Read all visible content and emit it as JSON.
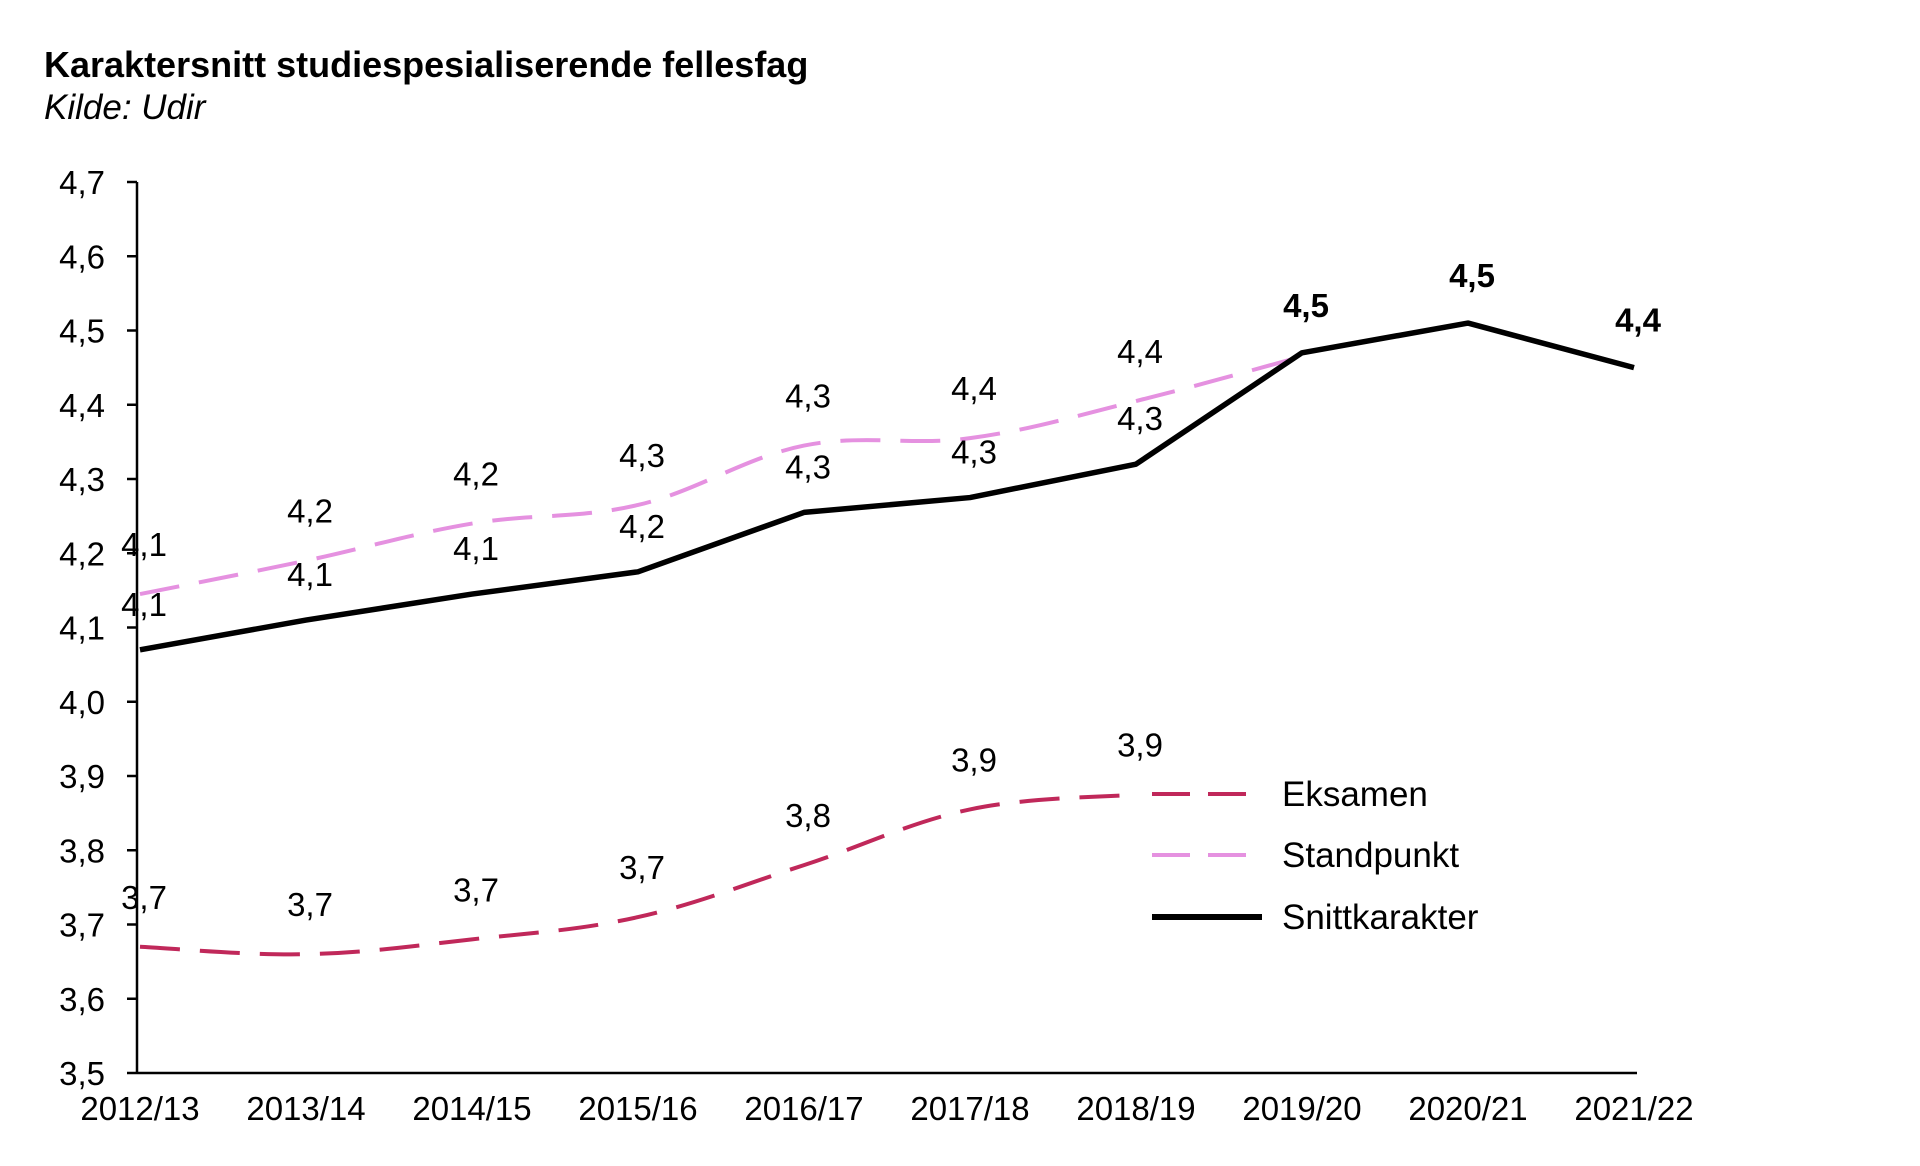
{
  "chart_data": {
    "type": "line",
    "title": "Karaktersnitt studiespesialiserende fellesfag",
    "subtitle": "Kilde: Udir",
    "xlabel": "",
    "ylabel": "",
    "categories": [
      "2012/13",
      "2013/14",
      "2014/15",
      "2015/16",
      "2016/17",
      "2017/18",
      "2018/19",
      "2019/20",
      "2020/21",
      "2021/22"
    ],
    "ylim": [
      3.5,
      4.7
    ],
    "yticks": [
      "3,5",
      "3,6",
      "3,7",
      "3,8",
      "3,9",
      "4,0",
      "4,1",
      "4,2",
      "4,3",
      "4,4",
      "4,5",
      "4,6",
      "4,7"
    ],
    "grid": false,
    "legend_position": "right",
    "series": [
      {
        "name": "Eksamen",
        "color": "#c0285a",
        "style": "dashed",
        "values": [
          3.67,
          3.66,
          3.68,
          3.71,
          3.78,
          3.855,
          3.875,
          null,
          null,
          null
        ],
        "labels": [
          "3,7",
          "3,7",
          "3,7",
          "3,7",
          "3,8",
          "3,9",
          "3,9",
          null,
          null,
          null
        ]
      },
      {
        "name": "Standpunkt",
        "color": "#e591e0",
        "style": "dashed",
        "values": [
          4.145,
          4.19,
          4.24,
          4.265,
          4.345,
          4.355,
          4.405,
          4.465,
          null,
          null
        ],
        "labels": [
          "4,1",
          "4,2",
          "4,2",
          "4,3",
          "4,3",
          "4,4",
          "4,4",
          null,
          null,
          null
        ]
      },
      {
        "name": "Snittkarakter",
        "color": "#000000",
        "style": "solid",
        "values": [
          4.07,
          4.11,
          4.145,
          4.175,
          4.255,
          4.275,
          4.32,
          4.47,
          4.51,
          4.45
        ],
        "labels": [
          "4,1",
          "4,1",
          "4,1",
          "4,2",
          "4,3",
          "4,3",
          "4,3",
          "4,5",
          "4,5",
          "4,4"
        ],
        "bold_labels_from_index": 7
      }
    ]
  }
}
